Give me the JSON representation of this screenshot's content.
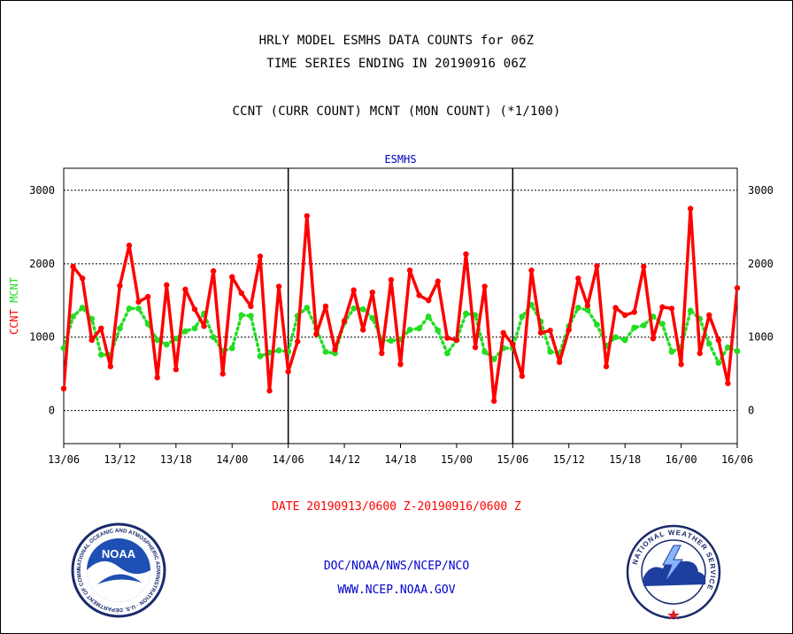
{
  "titles": {
    "line1": "HRLY MODEL ESMHS DATA COUNTS for 06Z",
    "line2": "TIME SERIES ENDING IN 20190916 06Z",
    "line3": "CCNT (CURR COUNT) MCNT (MON COUNT) (*1/100)"
  },
  "footer": {
    "date_range": "DATE 20190913/0600 Z-20190916/0600 Z",
    "org": "DOC/NOAA/NWS/NCEP/NCO",
    "url": "WWW.NCEP.NOAA.GOV"
  },
  "logos": {
    "noaa_text": "NOAA",
    "noaa_ring": "NATIONAL OCEANIC AND ATMOSPHERIC ADMINISTRATION · U.S. DEPARTMENT OF COMMERCE ·",
    "nws_ring": "NATIONAL WEATHER SERVICE"
  },
  "colors": {
    "ccnt": "#ff0000",
    "mcnt": "#22dd22",
    "title_label": "#0000cc",
    "date_label": "#ff0000",
    "footer_text": "#0000cc"
  },
  "chart_data": {
    "type": "line",
    "title": "ESMHS",
    "ylabel_left": [
      {
        "text": "CCNT",
        "color": "#ff0000"
      },
      {
        "text": "MCNT",
        "color": "#22dd22"
      }
    ],
    "xlim": [
      0,
      72
    ],
    "ylim": [
      -450,
      3300
    ],
    "yticks": [
      0,
      1000,
      2000,
      3000
    ],
    "xticks": [
      {
        "x": 0,
        "label": "13/06"
      },
      {
        "x": 6,
        "label": "13/12"
      },
      {
        "x": 12,
        "label": "13/18"
      },
      {
        "x": 18,
        "label": "14/00"
      },
      {
        "x": 24,
        "label": "14/06"
      },
      {
        "x": 30,
        "label": "14/12"
      },
      {
        "x": 36,
        "label": "14/18"
      },
      {
        "x": 42,
        "label": "15/00"
      },
      {
        "x": 48,
        "label": "15/06"
      },
      {
        "x": 54,
        "label": "15/12"
      },
      {
        "x": 60,
        "label": "15/18"
      },
      {
        "x": 66,
        "label": "16/00"
      },
      {
        "x": 72,
        "label": "16/06"
      }
    ],
    "day_dividers": [
      24,
      48
    ],
    "grid": true,
    "series": [
      {
        "name": "CCNT",
        "style": "solid",
        "values": [
          300,
          1960,
          1800,
          960,
          1120,
          600,
          1700,
          2250,
          1480,
          1550,
          450,
          1710,
          560,
          1650,
          1380,
          1150,
          1900,
          500,
          1820,
          1600,
          1420,
          2100,
          270,
          1690,
          530,
          940,
          2650,
          1040,
          1420,
          830,
          1220,
          1640,
          1100,
          1610,
          780,
          1780,
          630,
          1910,
          1570,
          1500,
          1760,
          990,
          960,
          2130,
          860,
          1690,
          130,
          1060,
          900,
          470,
          1910,
          1060,
          1090,
          660,
          1100,
          1800,
          1430,
          1970,
          600,
          1400,
          1300,
          1340,
          1960,
          980,
          1410,
          1390,
          630,
          2750,
          780,
          1300,
          960,
          370,
          1670
        ]
      },
      {
        "name": "MCNT",
        "style": "dotted",
        "values": [
          850,
          1280,
          1400,
          1250,
          760,
          760,
          1120,
          1390,
          1390,
          1180,
          960,
          900,
          980,
          1080,
          1120,
          1320,
          1000,
          810,
          850,
          1300,
          1290,
          740,
          790,
          820,
          800,
          1290,
          1400,
          1120,
          800,
          780,
          1200,
          1390,
          1380,
          1260,
          960,
          950,
          970,
          1100,
          1120,
          1280,
          1090,
          780,
          960,
          1320,
          1300,
          800,
          700,
          850,
          850,
          1280,
          1440,
          1210,
          800,
          780,
          1150,
          1400,
          1370,
          1170,
          880,
          1000,
          960,
          1130,
          1160,
          1280,
          1180,
          800,
          860,
          1360,
          1250,
          910,
          650,
          860,
          810
        ]
      }
    ]
  }
}
